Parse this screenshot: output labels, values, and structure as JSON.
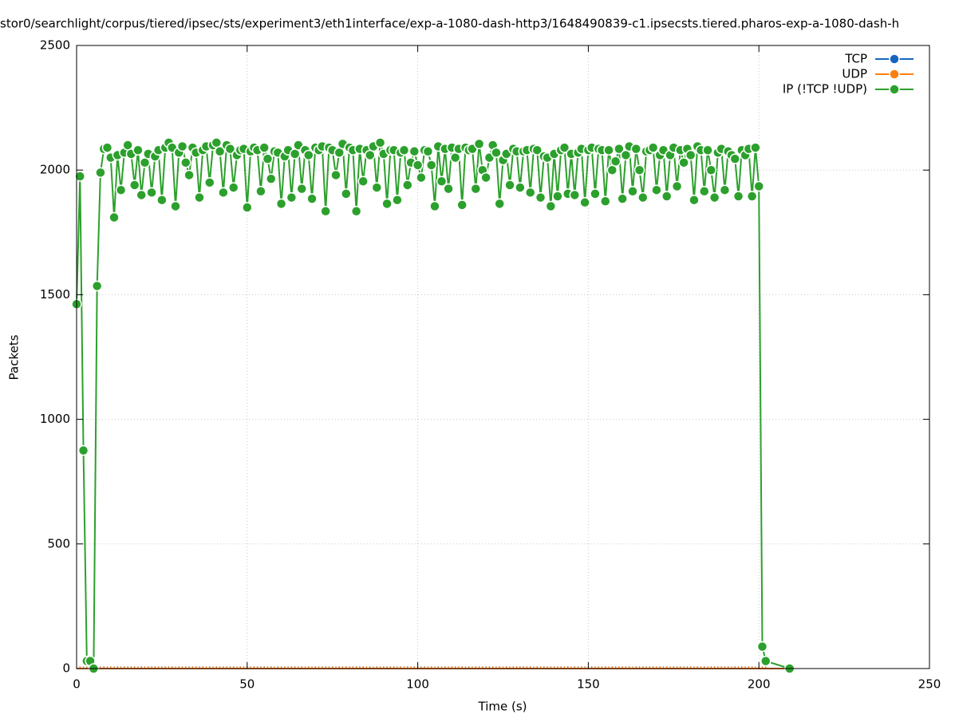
{
  "chart_data": {
    "type": "line",
    "title": "stor0/searchlight/corpus/tiered/ipsec/sts/experiment3/eth1interface/exp-a-1080-dash-http3/1648490839-c1.ipsecsts.tiered.pharos-exp-a-1080-dash-h",
    "x_label": "Time (s)",
    "y_label": "Packets",
    "xlim": [
      0,
      250
    ],
    "xticks": [
      0,
      50,
      100,
      150,
      200,
      250
    ],
    "ylim": [
      0,
      2500
    ],
    "yticks": [
      0,
      500,
      1000,
      1500,
      2000,
      2500
    ],
    "grid": true,
    "legend": "top-right",
    "x": [
      0,
      1,
      2,
      3,
      4,
      5,
      6,
      7,
      8,
      9,
      10,
      11,
      12,
      13,
      14,
      15,
      16,
      17,
      18,
      19,
      20,
      21,
      22,
      23,
      24,
      25,
      26,
      27,
      28,
      29,
      30,
      31,
      32,
      33,
      34,
      35,
      36,
      37,
      38,
      39,
      40,
      41,
      42,
      43,
      44,
      45,
      46,
      47,
      48,
      49,
      50,
      51,
      52,
      53,
      54,
      55,
      56,
      57,
      58,
      59,
      60,
      61,
      62,
      63,
      64,
      65,
      66,
      67,
      68,
      69,
      70,
      71,
      72,
      73,
      74,
      75,
      76,
      77,
      78,
      79,
      80,
      81,
      82,
      83,
      84,
      85,
      86,
      87,
      88,
      89,
      90,
      91,
      92,
      93,
      94,
      95,
      96,
      97,
      98,
      99,
      100,
      101,
      102,
      103,
      104,
      105,
      106,
      107,
      108,
      109,
      110,
      111,
      112,
      113,
      114,
      115,
      116,
      117,
      118,
      119,
      120,
      121,
      122,
      123,
      124,
      125,
      126,
      127,
      128,
      129,
      130,
      131,
      132,
      133,
      134,
      135,
      136,
      137,
      138,
      139,
      140,
      141,
      142,
      143,
      144,
      145,
      146,
      147,
      148,
      149,
      150,
      151,
      152,
      153,
      154,
      155,
      156,
      157,
      158,
      159,
      160,
      161,
      162,
      163,
      164,
      165,
      166,
      167,
      168,
      169,
      170,
      171,
      172,
      173,
      174,
      175,
      176,
      177,
      178,
      179,
      180,
      181,
      182,
      183,
      184,
      185,
      186,
      187,
      188,
      189,
      190,
      191,
      192,
      193,
      194,
      195,
      196,
      197,
      198,
      199,
      200,
      201,
      202,
      209
    ],
    "series": [
      {
        "name": "TCP",
        "color": "#1565c0",
        "values": [
          0,
          0,
          0,
          0,
          0,
          0,
          0,
          0,
          0,
          0,
          0,
          0,
          0,
          0,
          0,
          0,
          0,
          0,
          0,
          0,
          0,
          0,
          0,
          0,
          0,
          0,
          0,
          0,
          0,
          0,
          0,
          0,
          0,
          0,
          0,
          0,
          0,
          0,
          0,
          0,
          0,
          0,
          0,
          0,
          0,
          0,
          0,
          0,
          0,
          0,
          0,
          0,
          0,
          0,
          0,
          0,
          0,
          0,
          0,
          0,
          0,
          0,
          0,
          0,
          0,
          0,
          0,
          0,
          0,
          0,
          0,
          0,
          0,
          0,
          0,
          0,
          0,
          0,
          0,
          0,
          0,
          0,
          0,
          0,
          0,
          0,
          0,
          0,
          0,
          0,
          0,
          0,
          0,
          0,
          0,
          0,
          0,
          0,
          0,
          0,
          0,
          0,
          0,
          0,
          0,
          0,
          0,
          0,
          0,
          0,
          0,
          0,
          0,
          0,
          0,
          0,
          0,
          0,
          0,
          0,
          0,
          0,
          0,
          0,
          0,
          0,
          0,
          0,
          0,
          0,
          0,
          0,
          0,
          0,
          0,
          0,
          0,
          0,
          0,
          0,
          0,
          0,
          0,
          0,
          0,
          0,
          0,
          0,
          0,
          0,
          0,
          0,
          0,
          0,
          0,
          0,
          0,
          0,
          0,
          0,
          0,
          0,
          0,
          0,
          0,
          0,
          0,
          0,
          0,
          0,
          0,
          0,
          0,
          0,
          0,
          0,
          0,
          0,
          0,
          0,
          0,
          0,
          0,
          0,
          0,
          0,
          0,
          0,
          0,
          0,
          0,
          0,
          0,
          0,
          0,
          0,
          0,
          0,
          0,
          0,
          0,
          0,
          0,
          0
        ]
      },
      {
        "name": "UDP",
        "color": "#ff7f0e",
        "values": [
          0,
          0,
          0,
          0,
          0,
          0,
          0,
          0,
          0,
          0,
          0,
          0,
          0,
          0,
          0,
          0,
          0,
          0,
          0,
          0,
          0,
          0,
          0,
          0,
          0,
          0,
          0,
          0,
          0,
          0,
          0,
          0,
          0,
          0,
          0,
          0,
          0,
          0,
          0,
          0,
          0,
          0,
          0,
          0,
          0,
          0,
          0,
          0,
          0,
          0,
          0,
          0,
          0,
          0,
          0,
          0,
          0,
          0,
          0,
          0,
          0,
          0,
          0,
          0,
          0,
          0,
          0,
          0,
          0,
          0,
          0,
          0,
          0,
          0,
          0,
          0,
          0,
          0,
          0,
          0,
          0,
          0,
          0,
          0,
          0,
          0,
          0,
          0,
          0,
          0,
          0,
          0,
          0,
          0,
          0,
          0,
          0,
          0,
          0,
          0,
          0,
          0,
          0,
          0,
          0,
          0,
          0,
          0,
          0,
          0,
          0,
          0,
          0,
          0,
          0,
          0,
          0,
          0,
          0,
          0,
          0,
          0,
          0,
          0,
          0,
          0,
          0,
          0,
          0,
          0,
          0,
          0,
          0,
          0,
          0,
          0,
          0,
          0,
          0,
          0,
          0,
          0,
          0,
          0,
          0,
          0,
          0,
          0,
          0,
          0,
          0,
          0,
          0,
          0,
          0,
          0,
          0,
          0,
          0,
          0,
          0,
          0,
          0,
          0,
          0,
          0,
          0,
          0,
          0,
          0,
          0,
          0,
          0,
          0,
          0,
          0,
          0,
          0,
          0,
          0,
          0,
          0,
          0,
          0,
          0,
          0,
          0,
          0,
          0,
          0,
          0,
          0,
          0,
          0,
          0,
          0,
          0,
          0,
          0,
          0,
          0,
          0,
          0,
          0
        ]
      },
      {
        "name": "IP (!TCP  !UDP)",
        "color": "#2ca02c",
        "values": [
          1462,
          1975,
          875,
          30,
          30,
          0,
          1535,
          1990,
          2085,
          2090,
          2050,
          1810,
          2060,
          1920,
          2070,
          2100,
          2065,
          1940,
          2080,
          1900,
          2030,
          2065,
          1910,
          2055,
          2080,
          1880,
          2090,
          2110,
          2090,
          1855,
          2070,
          2095,
          2030,
          1980,
          2090,
          2070,
          1890,
          2080,
          2095,
          1950,
          2100,
          2110,
          2075,
          1910,
          2100,
          2085,
          1930,
          2060,
          2080,
          2085,
          1850,
          2075,
          2090,
          2080,
          1915,
          2090,
          2045,
          1965,
          2075,
          2070,
          1865,
          2055,
          2080,
          1890,
          2065,
          2100,
          1925,
          2080,
          2060,
          1885,
          2090,
          2080,
          2095,
          1835,
          2090,
          2080,
          1980,
          2070,
          2105,
          1905,
          2090,
          2080,
          1835,
          2085,
          1955,
          2080,
          2060,
          2095,
          1930,
          2110,
          2065,
          1865,
          2080,
          2080,
          1880,
          2070,
          2080,
          1940,
          2030,
          2075,
          2020,
          1970,
          2080,
          2075,
          2020,
          1855,
          2095,
          1955,
          2085,
          1925,
          2090,
          2050,
          2085,
          1860,
          2090,
          2080,
          2085,
          1925,
          2105,
          2000,
          1970,
          2050,
          2100,
          2070,
          1865,
          2040,
          2065,
          1940,
          2085,
          2075,
          1930,
          2075,
          2080,
          1910,
          2085,
          2080,
          1890,
          2055,
          2050,
          1855,
          2065,
          1895,
          2080,
          2090,
          1905,
          2065,
          1900,
          2070,
          2085,
          1870,
          2080,
          2090,
          1905,
          2085,
          2080,
          1875,
          2080,
          2000,
          2035,
          2085,
          1885,
          2060,
          2095,
          1915,
          2085,
          2000,
          1890,
          2075,
          2080,
          2090,
          1920,
          2060,
          2080,
          1895,
          2060,
          2090,
          1935,
          2080,
          2030,
          2085,
          2060,
          1880,
          2095,
          2080,
          1915,
          2080,
          2000,
          1890,
          2070,
          2085,
          1920,
          2075,
          2060,
          2045,
          1895,
          2080,
          2060,
          2085,
          1895,
          2090,
          1935,
          88,
          30,
          0
        ]
      }
    ]
  }
}
